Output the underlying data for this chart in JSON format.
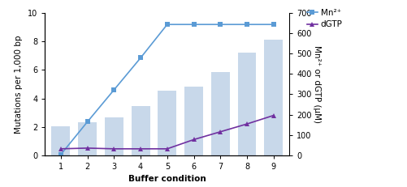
{
  "categories": [
    1,
    2,
    3,
    4,
    5,
    6,
    7,
    8,
    9
  ],
  "bar_values": [
    2.05,
    2.3,
    2.65,
    3.45,
    4.55,
    4.85,
    5.85,
    7.2,
    8.15
  ],
  "mn2_values": [
    0.05,
    2.35,
    4.6,
    6.85,
    9.2,
    9.2,
    9.2,
    9.2,
    9.2
  ],
  "dgtp_values": [
    0.45,
    0.5,
    0.45,
    0.45,
    0.45,
    1.1,
    1.65,
    2.2,
    2.8
  ],
  "bar_color": "#c8d8ea",
  "mn2_color": "#5b9bd5",
  "dgtp_color": "#7030a0",
  "xlabel": "Buffer condition",
  "ylabel_left": "Mutations per 1,000 bp",
  "ylabel_right": "Mn²⁺ or dGTP (μM)",
  "ylim_left": [
    0,
    10
  ],
  "ylim_right": [
    0,
    700
  ],
  "yticks_left": [
    0,
    2,
    4,
    6,
    8,
    10
  ],
  "yticks_right": [
    0,
    100,
    200,
    300,
    400,
    500,
    600,
    700
  ],
  "legend_mn2": "Mn²⁺",
  "legend_dgtp": "dGTP",
  "axis_fontsize": 7.5,
  "legend_fontsize": 7.5,
  "tick_fontsize": 7
}
